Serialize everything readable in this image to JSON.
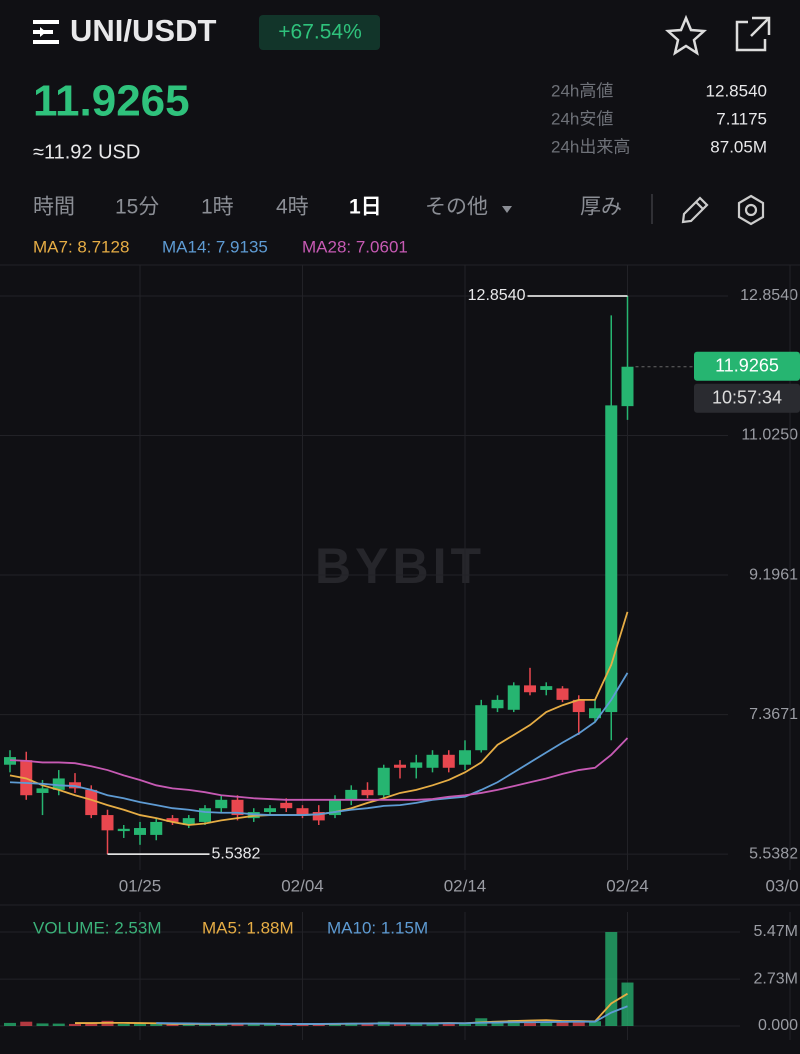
{
  "header": {
    "pair": "UNI/USDT",
    "change": "+67.54%",
    "price": "11.9265",
    "usd": "≈11.92 USD",
    "stats": [
      {
        "label": "24h高値",
        "value": "12.8540"
      },
      {
        "label": "24h安値",
        "value": "7.1175"
      },
      {
        "label": "24h出来高",
        "value": "87.05M"
      }
    ]
  },
  "tabs": [
    "時間",
    "15分",
    "1時",
    "4時",
    "1日",
    "その他",
    "厚み"
  ],
  "chart_data": [
    {
      "type": "candlestick",
      "watermark": "BYBIT",
      "high_label": "12.8540",
      "countdown": "10:57:34",
      "up_color": "#26b571",
      "down_color": "#e8474f",
      "grid": true,
      "categories": [
        null,
        null,
        null,
        null,
        null,
        null,
        null,
        null,
        "01/25",
        null,
        null,
        null,
        null,
        null,
        null,
        null,
        null,
        null,
        "02/04",
        null,
        null,
        null,
        null,
        null,
        null,
        null,
        null,
        null,
        "02/14",
        null,
        null,
        null,
        null,
        null,
        null,
        null,
        null,
        null,
        "02/24",
        null,
        null,
        null,
        null,
        null,
        null,
        null,
        null,
        null,
        "03/0"
      ],
      "open": [
        6.71,
        6.77,
        6.34,
        6.38,
        6.48,
        6.38,
        6.05,
        5.84,
        5.79,
        5.79,
        6.01,
        5.92,
        5.96,
        6.14,
        6.25,
        6.01,
        6.09,
        6.21,
        6.14,
        6.09,
        6.05,
        6.25,
        6.38,
        6.31,
        6.71,
        6.67,
        6.67,
        6.84,
        6.71,
        6.9,
        7.45,
        7.43,
        7.75,
        7.69,
        7.71,
        7.56,
        7.32,
        7.4,
        11.41,
        null,
        null,
        null,
        null,
        null,
        null,
        null,
        null,
        null,
        null
      ],
      "high": [
        6.9,
        6.88,
        6.51,
        6.64,
        6.6,
        6.44,
        6.12,
        5.92,
        5.96,
        6.01,
        6.05,
        6.05,
        6.18,
        6.31,
        6.31,
        6.14,
        6.18,
        6.27,
        6.18,
        6.18,
        6.31,
        6.44,
        6.48,
        6.71,
        6.77,
        6.84,
        6.9,
        6.9,
        7.03,
        7.56,
        7.62,
        7.79,
        7.98,
        7.79,
        7.74,
        7.62,
        7.56,
        12.6,
        12.854,
        null,
        null,
        null,
        null,
        null,
        null,
        null,
        null,
        null,
        null
      ],
      "low": [
        6.61,
        6.25,
        6.05,
        6.31,
        6.34,
        6.01,
        5.5382,
        5.75,
        5.66,
        5.72,
        5.92,
        5.88,
        5.92,
        6.09,
        5.98,
        5.96,
        6.05,
        6.09,
        6.01,
        5.92,
        6.01,
        6.18,
        6.27,
        6.27,
        6.53,
        6.53,
        6.61,
        6.61,
        6.64,
        6.87,
        7.4,
        7.4,
        7.62,
        7.62,
        7.53,
        7.1,
        7.27,
        7.03,
        11.23,
        null,
        null,
        null,
        null,
        null,
        null,
        null,
        null,
        null,
        null
      ],
      "close": [
        6.81,
        6.31,
        6.4,
        6.53,
        6.4,
        6.05,
        5.85,
        5.87,
        5.88,
        5.96,
        5.96,
        6.01,
        6.14,
        6.25,
        6.05,
        6.09,
        6.14,
        6.14,
        6.05,
        5.98,
        6.25,
        6.38,
        6.31,
        6.67,
        6.67,
        6.74,
        6.84,
        6.67,
        6.9,
        7.49,
        7.56,
        7.75,
        7.66,
        7.74,
        7.56,
        7.4,
        7.45,
        11.42,
        11.9265,
        null,
        null,
        null,
        null,
        null,
        null,
        null,
        null,
        null,
        null
      ],
      "series": [
        {
          "name": "MA7: 8.7128",
          "color": "#e6ad45",
          "values": [
            6.57,
            6.53,
            6.44,
            6.38,
            6.31,
            6.25,
            6.18,
            6.12,
            6.05,
            6.01,
            5.96,
            5.92,
            5.94,
            5.98,
            6.01,
            6.04,
            6.05,
            6.05,
            6.05,
            6.06,
            6.09,
            6.14,
            6.21,
            6.27,
            6.34,
            6.38,
            6.44,
            6.51,
            6.61,
            6.74,
            6.97,
            7.1,
            7.23,
            7.4,
            7.49,
            7.56,
            7.56,
            8.02,
            8.7128,
            null,
            null,
            null,
            null,
            null,
            null,
            null,
            null,
            null,
            null
          ]
        },
        {
          "name": "MA14: 7.9135",
          "color": "#5e9bd3",
          "values": [
            6.48,
            6.47,
            6.46,
            6.44,
            6.43,
            6.38,
            6.31,
            6.27,
            6.22,
            6.18,
            6.14,
            6.12,
            6.09,
            6.08,
            6.08,
            6.06,
            6.05,
            6.05,
            6.05,
            6.06,
            6.09,
            6.12,
            6.14,
            6.17,
            6.18,
            6.21,
            6.25,
            6.27,
            6.29,
            6.38,
            6.48,
            6.61,
            6.74,
            6.87,
            7.0,
            7.12,
            7.27,
            7.56,
            7.9135,
            null,
            null,
            null,
            null,
            null,
            null,
            null,
            null,
            null,
            null
          ]
        },
        {
          "name": "MA28: 7.0601",
          "color": "#c75ab4",
          "values": [
            6.77,
            6.76,
            6.74,
            6.74,
            6.73,
            6.69,
            6.64,
            6.57,
            6.51,
            6.44,
            6.4,
            6.38,
            6.35,
            6.31,
            6.29,
            6.27,
            6.26,
            6.25,
            6.25,
            6.25,
            6.25,
            6.25,
            6.25,
            6.25,
            6.25,
            6.25,
            6.26,
            6.29,
            6.31,
            6.34,
            6.38,
            6.43,
            6.48,
            6.53,
            6.59,
            6.64,
            6.67,
            6.84,
            7.0601,
            null,
            null,
            null,
            null,
            null,
            null,
            null,
            null,
            null,
            null
          ]
        }
      ],
      "ylim": [
        5.33,
        13.26
      ],
      "yticks": [
        {
          "value": 12.854,
          "label": "12.8540"
        },
        {
          "value": 11.025,
          "label": "11.0250"
        },
        9.1961,
        7.3671,
        5.5382
      ]
    },
    {
      "type": "volume",
      "grid": true,
      "values": [
        0.18,
        0.25,
        0.15,
        0.14,
        0.12,
        0.2,
        0.3,
        0.12,
        0.15,
        0.13,
        0.1,
        0.1,
        0.14,
        0.15,
        0.16,
        0.1,
        0.1,
        0.09,
        0.11,
        0.13,
        0.16,
        0.18,
        0.1,
        0.25,
        0.12,
        0.14,
        0.18,
        0.15,
        0.2,
        0.45,
        0.3,
        0.35,
        0.3,
        0.22,
        0.25,
        0.32,
        0.28,
        5.47,
        2.53,
        null,
        null,
        null,
        null,
        null,
        null,
        null,
        null,
        null,
        null
      ],
      "legend": "VOLUME: 2.53M",
      "legend_color": "#3bb27a",
      "series": [
        {
          "name": "MA5: 1.88M",
          "color": "#e6ad45",
          "values": [
            null,
            null,
            null,
            null,
            0.17,
            0.17,
            0.18,
            0.18,
            0.17,
            0.16,
            0.12,
            0.12,
            0.12,
            0.12,
            0.13,
            0.13,
            0.13,
            0.12,
            0.11,
            0.11,
            0.12,
            0.13,
            0.14,
            0.16,
            0.16,
            0.16,
            0.16,
            0.17,
            0.16,
            0.22,
            0.25,
            0.29,
            0.32,
            0.34,
            0.29,
            0.29,
            0.27,
            1.31,
            1.88,
            null,
            null,
            null,
            null,
            null,
            null,
            null,
            null,
            null,
            null
          ]
        },
        {
          "name": "MA10: 1.15M",
          "color": "#5e9bd3",
          "values": [
            null,
            null,
            null,
            null,
            null,
            null,
            null,
            null,
            null,
            0.17,
            0.16,
            0.15,
            0.14,
            0.14,
            0.14,
            0.14,
            0.13,
            0.12,
            0.12,
            0.12,
            0.13,
            0.14,
            0.14,
            0.15,
            0.15,
            0.15,
            0.15,
            0.16,
            0.16,
            0.19,
            0.2,
            0.22,
            0.22,
            0.23,
            0.24,
            0.25,
            0.25,
            0.78,
            1.15,
            null,
            null,
            null,
            null,
            null,
            null,
            null,
            null,
            null,
            null
          ]
        }
      ],
      "ylim": [
        0,
        6.17
      ],
      "yticks": [
        {
          "value": 5.47,
          "label": "5.47M"
        },
        {
          "value": 2.73,
          "label": "2.73M"
        },
        {
          "value": 0,
          "label": "0.000"
        }
      ]
    }
  ]
}
